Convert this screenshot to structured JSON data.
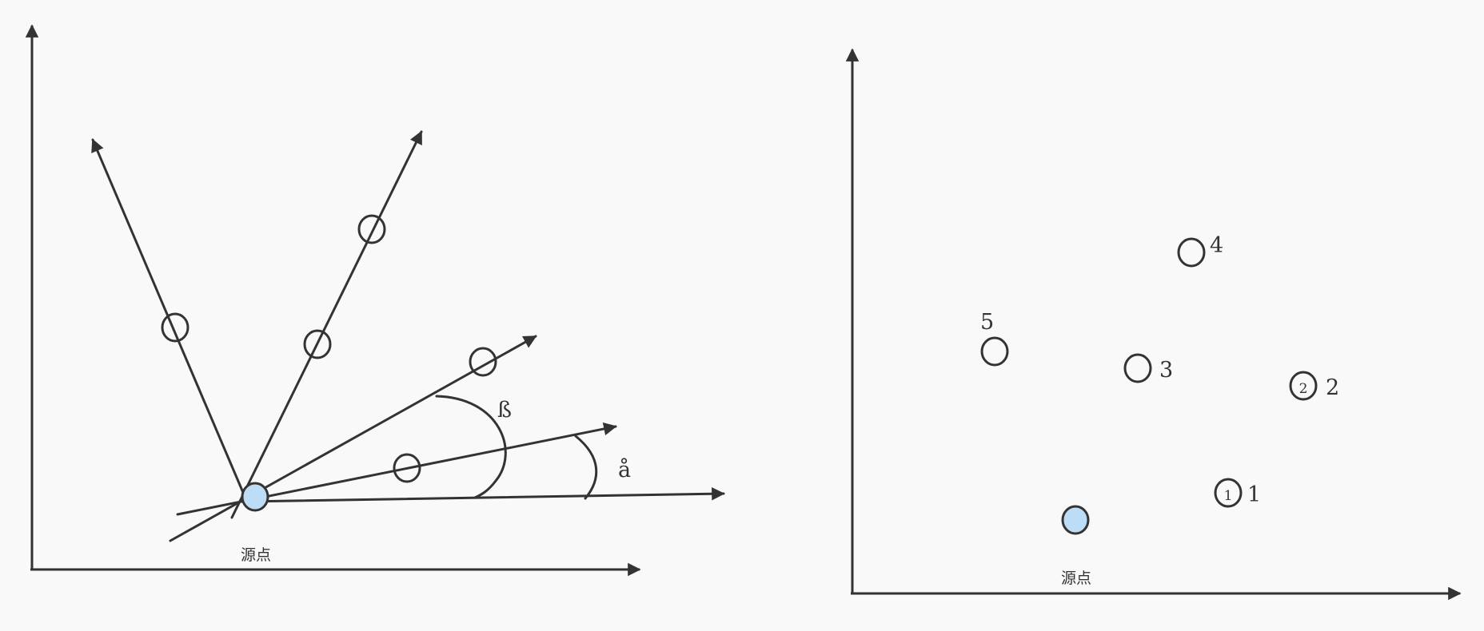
{
  "left_diagram": {
    "origin_label": "源点",
    "angle_beta_label": "ß",
    "angle_alpha_label": "å"
  },
  "right_diagram": {
    "origin_label": "源点",
    "point_labels": [
      "1",
      "2",
      "3",
      "4",
      "5"
    ],
    "inner_marks": [
      "1",
      "2"
    ]
  },
  "colors": {
    "stroke": "#333333",
    "source_fill": "#bddcf5",
    "background": "#f9f9f9"
  }
}
